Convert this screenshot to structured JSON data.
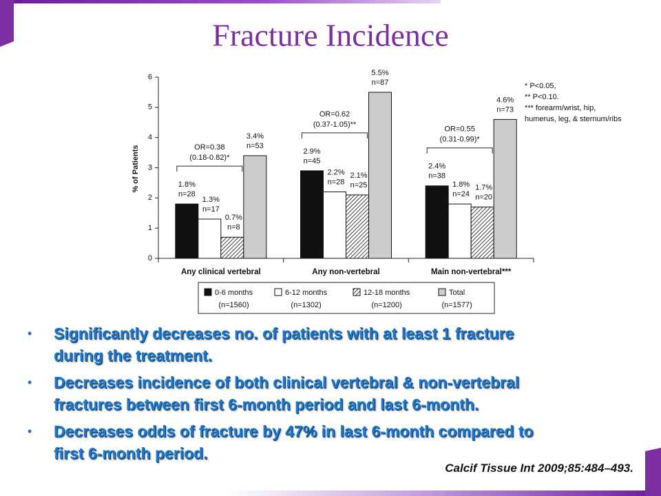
{
  "title": "Fracture Incidence",
  "chart_data": {
    "type": "bar",
    "y_label": "% of Patients",
    "categories": [
      "Any clinical vertebral",
      "Any non-vertebral",
      "Main non-vertebral***"
    ],
    "series": [
      {
        "name": "0-6 months",
        "legend_note": "(n=1560)",
        "color": "#111111",
        "hatch": false,
        "values": [
          1.8,
          2.9,
          2.4
        ],
        "value_labels": [
          "1.8%",
          "2.9%",
          "2.4%"
        ],
        "counts": [
          "n=28",
          "n=45",
          "n=38"
        ]
      },
      {
        "name": "6-12 months",
        "legend_note": "(n=1302)",
        "color": "#ffffff",
        "hatch": false,
        "values": [
          1.3,
          2.2,
          1.8
        ],
        "value_labels": [
          "1.3%",
          "2.2%",
          "1.8%"
        ],
        "counts": [
          "n=17",
          "n=28",
          "n=24"
        ]
      },
      {
        "name": "12-18 months",
        "legend_note": "(n=1200)",
        "color": "#444444",
        "hatch": true,
        "values": [
          0.7,
          2.1,
          1.7
        ],
        "value_labels": [
          "0.7%",
          "2.1%",
          "1.7%"
        ],
        "counts": [
          "n=8",
          "n=25",
          "n=20"
        ]
      },
      {
        "name": "Total",
        "legend_note": "(n=1577)",
        "color": "#cccccc",
        "hatch": false,
        "values": [
          3.4,
          5.5,
          4.6
        ],
        "value_labels": [
          "3.4%",
          "5.5%",
          "4.6%"
        ],
        "counts": [
          "n=53",
          "n=87",
          "n=73"
        ]
      }
    ],
    "ylim": [
      0,
      6
    ],
    "yticks": [
      0,
      1,
      2,
      3,
      4,
      5,
      6
    ],
    "grid": false,
    "odds_ratios": [
      {
        "label": "OR=0.38",
        "ci": "(0.18-0.82)*"
      },
      {
        "label": "OR=0.62",
        "ci": "(0.37-1.05)**"
      },
      {
        "label": "OR=0.55",
        "ci": "(0.31-0.99)*"
      }
    ],
    "footnotes": [
      "* P<0.05,",
      "** P<0.10.",
      "*** forearm/wrist,  hip,",
      "humerus,  leg,  & sternum/ribs"
    ]
  },
  "bullets": [
    [
      "Significantly decreases no. of patients with at least 1 fracture",
      "during the treatment."
    ],
    [
      "Decreases incidence of both clinical vertebral & non-vertebral",
      "fractures between first 6-month period and last 6-month."
    ],
    [
      "Decreases odds of fracture by 47% in last 6-month compared to",
      "first 6-month period."
    ]
  ],
  "citation": "Calcif Tissue Int 2009;85:484–493."
}
